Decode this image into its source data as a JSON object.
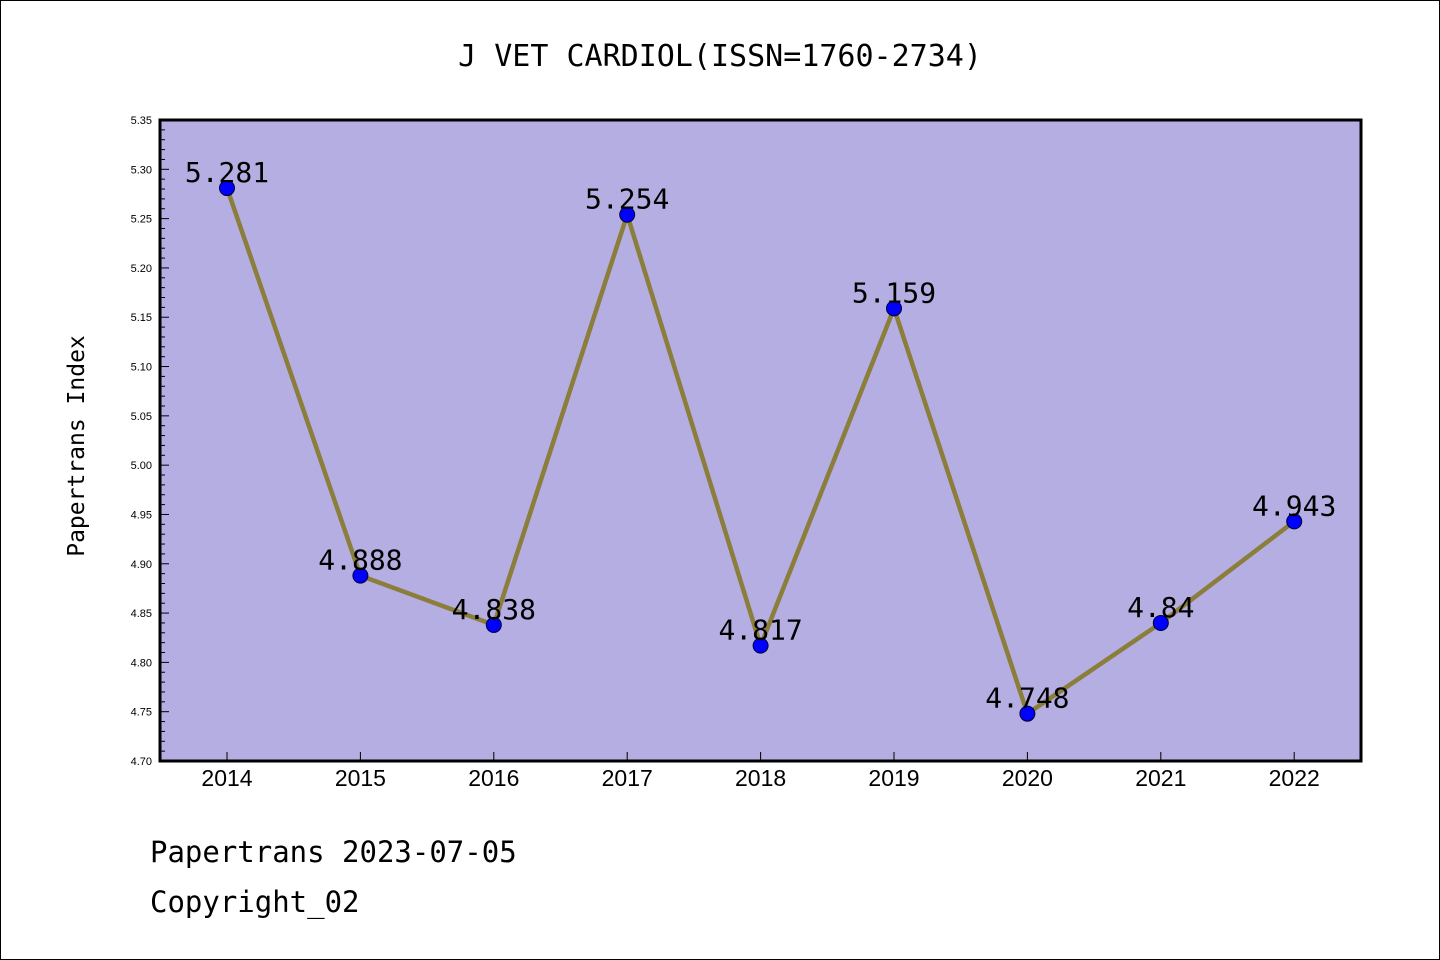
{
  "chart_data": {
    "type": "line",
    "title": "J VET CARDIOL(ISSN=1760-2734)",
    "xlabel": "",
    "ylabel": "Papertrans Index",
    "categories": [
      "2014",
      "2015",
      "2016",
      "2017",
      "2018",
      "2019",
      "2020",
      "2021",
      "2022"
    ],
    "series": [
      {
        "values": [
          5.281,
          4.888,
          4.838,
          5.254,
          4.817,
          5.159,
          4.748,
          4.84,
          4.943
        ],
        "labels": [
          "5.281",
          "4.888",
          "4.838",
          "5.254",
          "4.817",
          "5.159",
          "4.748",
          "4.84",
          "4.943"
        ]
      }
    ],
    "ylim": [
      4.7,
      5.35
    ],
    "yticks": [
      "4.70",
      "4.75",
      "4.80",
      "4.85",
      "4.90",
      "4.95",
      "5.00",
      "5.05",
      "5.10",
      "5.15",
      "5.20",
      "5.25",
      "5.30",
      "5.35"
    ],
    "grid": false,
    "legend": "none",
    "colors": {
      "plot_background": "#b4aee2",
      "line": "#8b7d3a",
      "marker": "#0000ff",
      "axis": "#000000"
    }
  },
  "footer": {
    "line1": "Papertrans 2023-07-05",
    "line2": "Copyright_02"
  }
}
